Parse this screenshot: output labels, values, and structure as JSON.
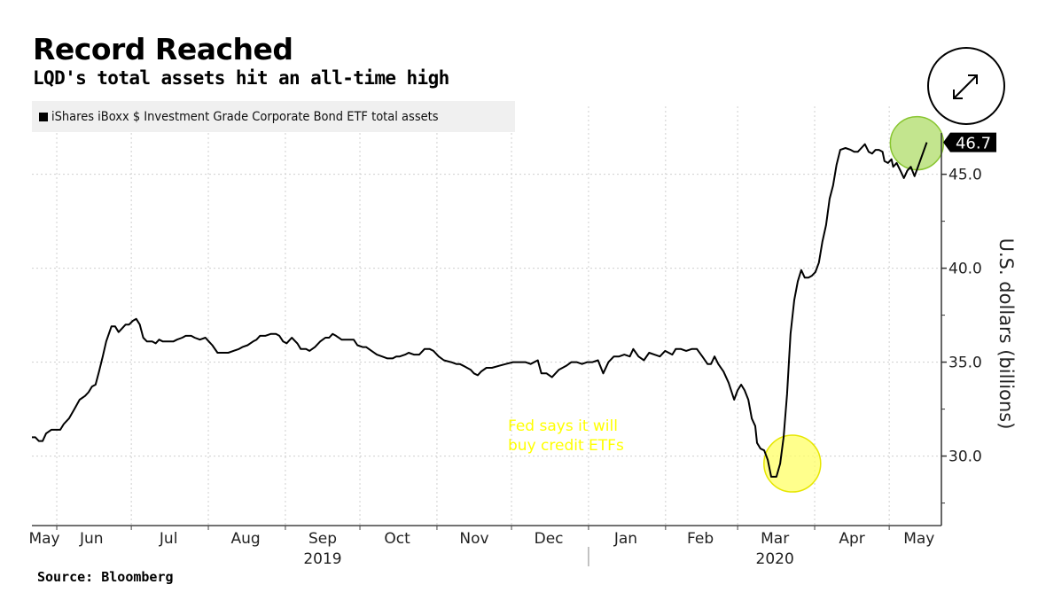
{
  "header": {
    "title": "Record Reached",
    "subtitle": "LQD's total assets hit an all-time high"
  },
  "footer": {
    "source": "Source: Bloomberg"
  },
  "controls": {
    "expand_icon": "expand-arrows-icon"
  },
  "chart_data": {
    "type": "line",
    "title": "Record Reached",
    "subtitle": "LQD's total assets hit an all-time high",
    "xlabel": "",
    "ylabel": "U.S. dollars (billions)",
    "x_range": [
      "2019-05-22",
      "2020-05-22"
    ],
    "ylim": [
      26.3,
      47.2
    ],
    "y_ticks": [
      30.0,
      35.0,
      40.0,
      45.0
    ],
    "y_tick_labels": [
      "30.0",
      "35.0",
      "40.0",
      "45.0"
    ],
    "x_ticks": [
      {
        "label": "May",
        "date": "2019-05-27"
      },
      {
        "label": "Jun",
        "date": "2019-06-15"
      },
      {
        "label": "Jul",
        "date": "2019-07-16"
      },
      {
        "label": "Aug",
        "date": "2019-08-16"
      },
      {
        "label": "Sep",
        "date": "2019-09-16"
      },
      {
        "label": "Oct",
        "date": "2019-10-16"
      },
      {
        "label": "Nov",
        "date": "2019-11-16"
      },
      {
        "label": "Dec",
        "date": "2019-12-16"
      },
      {
        "label": "Jan",
        "date": "2020-01-16"
      },
      {
        "label": "Feb",
        "date": "2020-02-15"
      },
      {
        "label": "Mar",
        "date": "2020-03-16"
      },
      {
        "label": "Apr",
        "date": "2020-04-16"
      },
      {
        "label": "May",
        "date": "2020-05-13"
      }
    ],
    "month_boundaries": [
      "2019-06-01",
      "2019-07-01",
      "2019-08-01",
      "2019-09-01",
      "2019-10-01",
      "2019-11-01",
      "2019-12-01",
      "2020-01-01",
      "2020-02-01",
      "2020-03-01",
      "2020-04-01",
      "2020-05-01"
    ],
    "year_labels": [
      {
        "label": "2019",
        "date": "2019-09-16"
      },
      {
        "label": "2020",
        "date": "2020-03-16"
      }
    ],
    "year_divider": "2020-01-01",
    "grid": true,
    "legend": {
      "position": "top-left",
      "entries": [
        "iShares iBoxx $ Investment Grade Corporate Bond ETF total assets"
      ]
    },
    "last_value_label": "46.7",
    "annotations": [
      {
        "text_lines": [
          "Fed says it will",
          "buy credit ETFs"
        ],
        "color": "#ffff00",
        "highlight_date": "2020-03-23",
        "highlight_value": 29.6,
        "highlight_color": "#ffff00"
      },
      {
        "text_lines": [],
        "highlight_date": "2020-05-15",
        "highlight_value": 46.7,
        "highlight_color": "#8fce3a"
      }
    ],
    "series": [
      {
        "name": "iShares iBoxx $ Investment Grade Corporate Bond ETF total assets",
        "color": "#000000",
        "day_offset_from": "2019-05-22",
        "points": [
          [
            0,
            31.0
          ],
          [
            1.4,
            31.0
          ],
          [
            2.8,
            30.8
          ],
          [
            4.3,
            30.8
          ],
          [
            5.7,
            31.2
          ],
          [
            7.8,
            31.4
          ],
          [
            10,
            31.4
          ],
          [
            11.4,
            31.4
          ],
          [
            12.8,
            31.7
          ],
          [
            14.9,
            32.0
          ],
          [
            17.1,
            32.5
          ],
          [
            19.2,
            33.0
          ],
          [
            21.4,
            33.2
          ],
          [
            22.8,
            33.4
          ],
          [
            24.2,
            33.7
          ],
          [
            25.6,
            33.8
          ],
          [
            27.0,
            34.5
          ],
          [
            28.5,
            35.3
          ],
          [
            29.9,
            36.1
          ],
          [
            32.0,
            36.9
          ],
          [
            33.5,
            36.9
          ],
          [
            34.9,
            36.6
          ],
          [
            36.3,
            36.8
          ],
          [
            37.7,
            37.0
          ],
          [
            39.1,
            37.0
          ],
          [
            40.6,
            37.2
          ],
          [
            42.0,
            37.3
          ],
          [
            43.4,
            37.0
          ],
          [
            44.8,
            36.3
          ],
          [
            46.3,
            36.1
          ],
          [
            48.4,
            36.1
          ],
          [
            49.8,
            36.0
          ],
          [
            51.2,
            36.2
          ],
          [
            52.7,
            36.1
          ],
          [
            54.8,
            36.1
          ],
          [
            56.9,
            36.1
          ],
          [
            58.4,
            36.2
          ],
          [
            60.5,
            36.3
          ],
          [
            61.9,
            36.4
          ],
          [
            64.1,
            36.4
          ],
          [
            65.5,
            36.3
          ],
          [
            67.6,
            36.2
          ],
          [
            69.8,
            36.3
          ],
          [
            71.2,
            36.1
          ],
          [
            72.6,
            35.9
          ],
          [
            74.7,
            35.5
          ],
          [
            76.9,
            35.5
          ],
          [
            79.0,
            35.5
          ],
          [
            81.1,
            35.6
          ],
          [
            83.3,
            35.7
          ],
          [
            84.7,
            35.8
          ],
          [
            86.8,
            35.9
          ],
          [
            89.0,
            36.1
          ],
          [
            90.4,
            36.2
          ],
          [
            91.8,
            36.4
          ],
          [
            93.9,
            36.4
          ],
          [
            96.1,
            36.5
          ],
          [
            98.2,
            36.5
          ],
          [
            99.6,
            36.4
          ],
          [
            101.1,
            36.1
          ],
          [
            102.5,
            36.0
          ],
          [
            104.6,
            36.3
          ],
          [
            106.8,
            36.0
          ],
          [
            108.2,
            35.7
          ],
          [
            110.3,
            35.7
          ],
          [
            111.7,
            35.6
          ],
          [
            113.9,
            35.8
          ],
          [
            116.0,
            36.1
          ],
          [
            118.1,
            36.3
          ],
          [
            119.6,
            36.3
          ],
          [
            121.0,
            36.5
          ],
          [
            122.4,
            36.4
          ],
          [
            124.6,
            36.2
          ],
          [
            126.7,
            36.2
          ],
          [
            128.1,
            36.2
          ],
          [
            129.5,
            36.2
          ],
          [
            131.0,
            35.9
          ],
          [
            133.1,
            35.8
          ],
          [
            134.5,
            35.8
          ],
          [
            136.7,
            35.6
          ],
          [
            138.8,
            35.4
          ],
          [
            140.9,
            35.3
          ],
          [
            143.1,
            35.2
          ],
          [
            145.2,
            35.2
          ],
          [
            146.6,
            35.3
          ],
          [
            148.0,
            35.3
          ],
          [
            150.2,
            35.4
          ],
          [
            151.6,
            35.5
          ],
          [
            153.7,
            35.4
          ],
          [
            155.9,
            35.4
          ],
          [
            158.0,
            35.7
          ],
          [
            160.1,
            35.7
          ],
          [
            161.6,
            35.6
          ],
          [
            163.7,
            35.3
          ],
          [
            165.8,
            35.1
          ],
          [
            168.7,
            35.0
          ],
          [
            170.8,
            34.9
          ],
          [
            172.2,
            34.9
          ],
          [
            173.7,
            34.8
          ],
          [
            175.1,
            34.7
          ],
          [
            176.5,
            34.6
          ],
          [
            177.9,
            34.4
          ],
          [
            179.4,
            34.3
          ],
          [
            180.8,
            34.5
          ],
          [
            182.9,
            34.7
          ],
          [
            185.1,
            34.7
          ],
          [
            187.9,
            34.8
          ],
          [
            190.7,
            34.9
          ],
          [
            193.6,
            35.0
          ],
          [
            195.7,
            35.0
          ],
          [
            198.6,
            35.0
          ],
          [
            200.7,
            34.9
          ],
          [
            203.6,
            35.1
          ],
          [
            205.0,
            34.4
          ],
          [
            207.1,
            34.4
          ],
          [
            209.3,
            34.2
          ],
          [
            212.1,
            34.6
          ],
          [
            215.0,
            34.8
          ],
          [
            217.1,
            35.0
          ],
          [
            219.2,
            35.0
          ],
          [
            221.4,
            34.9
          ],
          [
            223.5,
            35.0
          ],
          [
            225.6,
            35.0
          ],
          [
            227.8,
            35.1
          ],
          [
            229.9,
            34.4
          ],
          [
            232.0,
            35.0
          ],
          [
            234.2,
            35.3
          ],
          [
            236.3,
            35.3
          ],
          [
            238.4,
            35.4
          ],
          [
            240.6,
            35.3
          ],
          [
            242.0,
            35.7
          ],
          [
            244.1,
            35.3
          ],
          [
            246.3,
            35.1
          ],
          [
            248.4,
            35.5
          ],
          [
            250.5,
            35.4
          ],
          [
            252.7,
            35.3
          ],
          [
            254.8,
            35.6
          ],
          [
            257.7,
            35.4
          ],
          [
            259.1,
            35.7
          ],
          [
            261.2,
            35.7
          ],
          [
            263.3,
            35.6
          ],
          [
            265.5,
            35.7
          ],
          [
            267.6,
            35.7
          ],
          [
            269.8,
            35.3
          ],
          [
            271.9,
            34.9
          ],
          [
            273.3,
            34.9
          ],
          [
            274.7,
            35.3
          ],
          [
            276.2,
            34.9
          ],
          [
            278.3,
            34.5
          ],
          [
            280.4,
            33.9
          ],
          [
            282.6,
            33.0
          ],
          [
            284.0,
            33.5
          ],
          [
            285.4,
            33.8
          ],
          [
            286.8,
            33.5
          ],
          [
            288.3,
            33.0
          ],
          [
            289.7,
            32.0
          ],
          [
            291.1,
            31.6
          ],
          [
            291.8,
            30.7
          ],
          [
            293.2,
            30.4
          ],
          [
            294.7,
            30.3
          ],
          [
            296.1,
            29.8
          ],
          [
            297.5,
            28.9
          ],
          [
            299.6,
            28.9
          ],
          [
            301.1,
            29.6
          ],
          [
            302.5,
            31.0
          ],
          [
            303.9,
            33.3
          ],
          [
            305.3,
            36.5
          ],
          [
            306.8,
            38.3
          ],
          [
            308.2,
            39.3
          ],
          [
            309.6,
            39.9
          ],
          [
            311.0,
            39.5
          ],
          [
            312.5,
            39.5
          ],
          [
            313.9,
            39.6
          ],
          [
            315.3,
            39.8
          ],
          [
            316.7,
            40.3
          ],
          [
            318.1,
            41.4
          ],
          [
            319.6,
            42.3
          ],
          [
            321.0,
            43.7
          ],
          [
            322.4,
            44.4
          ],
          [
            323.8,
            45.5
          ],
          [
            325.3,
            46.3
          ],
          [
            327.4,
            46.4
          ],
          [
            329.5,
            46.3
          ],
          [
            330.9,
            46.2
          ],
          [
            332.4,
            46.2
          ],
          [
            333.8,
            46.4
          ],
          [
            335.2,
            46.6
          ],
          [
            336.7,
            46.2
          ],
          [
            338.1,
            46.1
          ],
          [
            339.5,
            46.3
          ],
          [
            340.9,
            46.3
          ],
          [
            342.3,
            46.2
          ],
          [
            343.1,
            45.7
          ],
          [
            344.5,
            45.6
          ],
          [
            345.9,
            45.8
          ],
          [
            346.6,
            45.4
          ],
          [
            348.0,
            45.6
          ],
          [
            349.5,
            45.2
          ],
          [
            350.9,
            44.8
          ],
          [
            352.3,
            45.2
          ],
          [
            353.7,
            45.4
          ],
          [
            355.2,
            44.9
          ],
          [
            356.6,
            45.4
          ],
          [
            360.1,
            46.7
          ]
        ]
      }
    ]
  }
}
